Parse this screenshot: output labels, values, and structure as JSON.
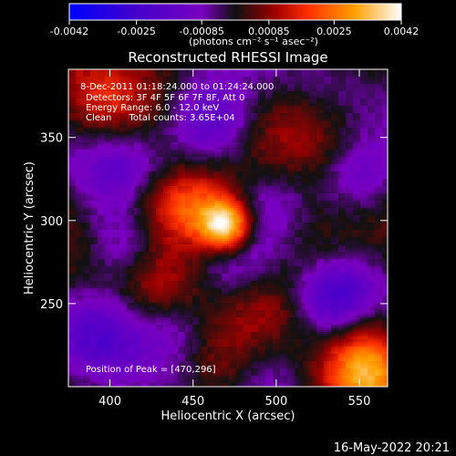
{
  "colorbar": {
    "ticks": [
      -0.0042,
      -0.0025,
      -0.00085,
      0.00085,
      0.0025,
      0.0042
    ],
    "tick_labels": [
      "-0.0042",
      "-0.0025",
      "-0.00085",
      "0.00085",
      "0.0025",
      "0.0042"
    ],
    "units_label": "(photons cm⁻² s⁻¹ asec⁻²)",
    "range": [
      -0.0042,
      0.0042
    ],
    "colors": [
      "#0000ff",
      "#4400cc",
      "#7a00c0",
      "#111111",
      "#a00000",
      "#ff3000",
      "#ffa000",
      "#ffffff"
    ]
  },
  "chart_data": {
    "type": "heatmap",
    "title": "Reconstructed RHESSI Image",
    "xlabel": "Heliocentric X (arcsec)",
    "ylabel": "Heliocentric Y (arcsec)",
    "xlim": [
      375,
      567
    ],
    "ylim": [
      200,
      391
    ],
    "x_ticks": [
      400,
      450,
      500,
      550
    ],
    "x_tick_labels": [
      "400",
      "450",
      "500",
      "550"
    ],
    "y_ticks": [
      250,
      300,
      350
    ],
    "y_tick_labels": [
      "250",
      "300",
      "350"
    ],
    "annotations": [
      "8-Dec-2011 01:18:24.000 to 01:24:24.000",
      "Detectors: 3F 4F 5F 6F 7F 8F, Att 0",
      "Energy Range: 6.0 - 12.0 keV",
      "Clean      Total counts: 3.65E+04"
    ],
    "peak_label": "Position of Peak = [470,296]",
    "peak": [
      470,
      296
    ],
    "sources": [
      {
        "x": 470,
        "y": 296,
        "value": 0.0042
      },
      {
        "x": 452,
        "y": 307,
        "value": 0.0026
      },
      {
        "x": 425,
        "y": 308,
        "value": 0.0012
      },
      {
        "x": 395,
        "y": 368,
        "value": 0.0013
      },
      {
        "x": 430,
        "y": 265,
        "value": 0.0011
      },
      {
        "x": 520,
        "y": 280,
        "value": 0.001
      },
      {
        "x": 500,
        "y": 248,
        "value": 0.0009
      },
      {
        "x": 552,
        "y": 232,
        "value": 0.0011
      },
      {
        "x": 555,
        "y": 207,
        "value": 0.0024
      },
      {
        "x": 462,
        "y": 212,
        "value": 0.001
      },
      {
        "x": 540,
        "y": 345,
        "value": 0.0008
      },
      {
        "x": 510,
        "y": 360,
        "value": 0.0007
      },
      {
        "x": 460,
        "y": 360,
        "value": -0.0025
      },
      {
        "x": 548,
        "y": 328,
        "value": -0.002
      },
      {
        "x": 535,
        "y": 252,
        "value": -0.0024
      },
      {
        "x": 470,
        "y": 278,
        "value": -0.0012
      },
      {
        "x": 410,
        "y": 285,
        "value": -0.0018
      },
      {
        "x": 395,
        "y": 232,
        "value": -0.0016
      },
      {
        "x": 442,
        "y": 235,
        "value": -0.0013
      },
      {
        "x": 500,
        "y": 310,
        "value": -0.0011
      },
      {
        "x": 500,
        "y": 210,
        "value": -0.0012
      },
      {
        "x": 405,
        "y": 330,
        "value": -0.0013
      }
    ]
  },
  "footer_timestamp": "16-May-2022 20:21"
}
